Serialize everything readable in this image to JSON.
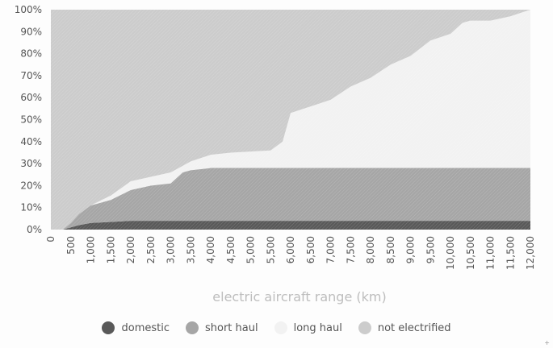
{
  "chart_data": {
    "type": "area",
    "stacked": true,
    "xlabel": "electric aircraft range (km)",
    "ylabel": "",
    "xlim": [
      0,
      12000
    ],
    "ylim": [
      0,
      100
    ],
    "x_ticks": [
      "0",
      "500",
      "1,000",
      "1,500",
      "2,000",
      "2,500",
      "3,000",
      "3,500",
      "4,000",
      "4,500",
      "5,000",
      "5,500",
      "6,000",
      "6,500",
      "7,000",
      "7,500",
      "8,000",
      "8,500",
      "9,000",
      "9,500",
      "10,000",
      "10,500",
      "11,000",
      "11,500",
      "12,000"
    ],
    "y_ticks": [
      "0%",
      "10%",
      "20%",
      "30%",
      "40%",
      "50%",
      "60%",
      "70%",
      "80%",
      "90%",
      "100%"
    ],
    "legend_position": "bottom",
    "x": [
      0,
      300,
      500,
      700,
      1000,
      1500,
      2000,
      2500,
      3000,
      3300,
      3500,
      4000,
      4500,
      5000,
      5500,
      5800,
      6000,
      6500,
      7000,
      7500,
      8000,
      8500,
      9000,
      9500,
      10000,
      10300,
      10500,
      11000,
      11500,
      12000
    ],
    "series": [
      {
        "name": "domestic",
        "color": "#595959",
        "values": [
          0,
          0,
          1,
          2,
          3,
          3.5,
          4,
          4,
          4,
          4,
          4,
          4,
          4,
          4,
          4,
          4,
          4,
          4,
          4,
          4,
          4,
          4,
          4,
          4,
          4,
          4,
          4,
          4,
          4,
          4
        ]
      },
      {
        "name": "short haul",
        "color": "#a6a6a6",
        "values": [
          0,
          0,
          2,
          5,
          8,
          10,
          14,
          16,
          17,
          22,
          23,
          24,
          24,
          24,
          24,
          24,
          24,
          24,
          24,
          24,
          24,
          24,
          24,
          24,
          24,
          24,
          24,
          24,
          24,
          24
        ]
      },
      {
        "name": "long haul",
        "color": "#f2f2f2",
        "values": [
          0,
          0,
          0,
          0,
          0,
          2,
          4,
          4,
          5,
          3,
          4,
          6,
          7,
          7.5,
          8,
          12,
          25,
          28,
          31,
          37,
          41,
          47,
          51,
          58,
          61,
          66,
          67,
          67,
          69,
          72
        ]
      },
      {
        "name": "not electrified",
        "color": "#cccccc",
        "values": [
          100,
          100,
          97,
          93,
          89,
          84.5,
          78,
          76,
          74,
          71,
          69,
          66,
          65,
          64.5,
          64,
          60,
          47,
          44,
          41,
          35,
          31,
          25,
          21,
          14,
          11,
          6,
          5,
          5,
          3,
          0
        ]
      }
    ]
  },
  "legend": {
    "items": [
      {
        "label": "domestic",
        "color": "#595959"
      },
      {
        "label": "short haul",
        "color": "#a6a6a6"
      },
      {
        "label": "long haul",
        "color": "#f2f2f2"
      },
      {
        "label": "not electrified",
        "color": "#cccccc"
      }
    ]
  },
  "corner_mark": "+"
}
